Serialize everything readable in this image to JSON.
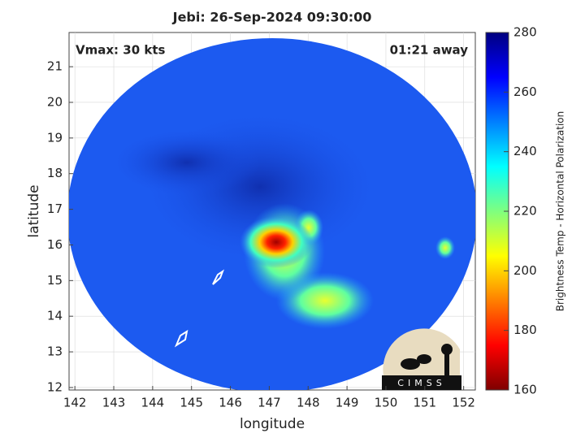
{
  "chart_data": {
    "type": "image",
    "title": "Jebi: 26-Sep-2024 09:30:00",
    "x_label": "longitude",
    "y_label": "latitude",
    "annotations": [
      "Vmax: 30 kts",
      "01:21 away"
    ],
    "logo": "CIMSS",
    "xlim": [
      141.85,
      152.3
    ],
    "xticks": [
      142,
      143,
      144,
      145,
      146,
      147,
      148,
      149,
      150,
      151,
      152
    ],
    "ylim": [
      11.93,
      21.96
    ],
    "yticks": [
      12,
      13,
      14,
      15,
      16,
      17,
      18,
      19,
      20,
      21
    ],
    "grid": true,
    "colorbar": {
      "label": "Brightness Temp - Horizontal Polarization",
      "lim": [
        160,
        280
      ],
      "ticks": [
        160,
        180,
        200,
        220,
        240,
        260,
        280
      ],
      "colormap": [
        "#7f0000",
        "#ff0000",
        "#ff7f00",
        "#ffff00",
        "#7fff7f",
        "#00ffff",
        "#007fff",
        "#0000ff",
        "#00007f"
      ]
    }
  }
}
